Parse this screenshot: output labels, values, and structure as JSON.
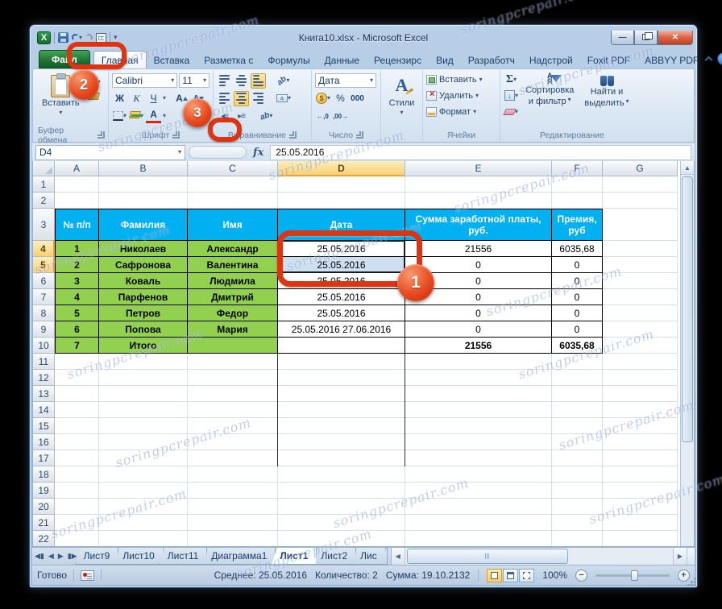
{
  "window": {
    "title": "Книга10.xlsx - Microsoft Excel",
    "logo_letter": "X"
  },
  "ribbon": {
    "file_tab": "Файл",
    "active_tab": "Главная",
    "tabs": [
      "Главная",
      "Вставка",
      "Разметка с",
      "Формулы",
      "Данные",
      "Рецензирс",
      "Вид",
      "Разработч",
      "Надстрой",
      "Foxit PDF",
      "ABBYY PDF"
    ],
    "clipboard": {
      "paste": "Вставить",
      "label": "Буфер обмена"
    },
    "font": {
      "name": "Calibri",
      "size": "11",
      "bold": "Ж",
      "italic": "К",
      "underline": "Ч",
      "size_letter": "А",
      "color_letter": "А",
      "label": "Шрифт"
    },
    "alignment": {
      "orient": "ab",
      "merge": "a",
      "label": "Выравнивание"
    },
    "number": {
      "format": "Дата",
      "percent": "%",
      "thousands": "000",
      "inc_dec": "←,0",
      "dec_dec": ",00→",
      "coin": "$",
      "label": "Число"
    },
    "styles": {
      "letter": "А",
      "label": "Стили"
    },
    "cells": {
      "insert": "Вставить",
      "delete": "Удалить",
      "format": "Формат",
      "label": "Ячейки"
    },
    "editing": {
      "sigma": "Σ",
      "sort_a": "А",
      "sort_z": "Я",
      "sort1": "Сортировка",
      "sort2": "и фильтр",
      "find1": "Найти и",
      "find2": "выделить",
      "label": "Редактирование"
    }
  },
  "formula_bar": {
    "name_box": "D4",
    "fx": "fx",
    "formula": "25.05.2016"
  },
  "sheet": {
    "col_headers": [
      "A",
      "B",
      "C",
      "D",
      "E",
      "F",
      "G"
    ],
    "selected_col": "D",
    "selected_rows": [
      4,
      5
    ],
    "table_headers": [
      "№ п/п",
      "Фамилия",
      "Имя",
      "Дата",
      "Сумма заработной платы, руб.",
      "Премия, руб"
    ],
    "data_rows": [
      {
        "row": 4,
        "cells": [
          "1",
          "Николаев",
          "Александр",
          "25.05.2016",
          "21556",
          "6035,68"
        ]
      },
      {
        "row": 5,
        "cells": [
          "2",
          "Сафронова",
          "Валентина",
          "25.05.2016",
          "0",
          "0"
        ]
      },
      {
        "row": 6,
        "cells": [
          "3",
          "Коваль",
          "Людмила",
          "25.05.2016",
          "0",
          "0"
        ]
      },
      {
        "row": 7,
        "cells": [
          "4",
          "Парфенов",
          "Дмитрий",
          "25.05.2016",
          "0",
          "0"
        ]
      },
      {
        "row": 8,
        "cells": [
          "5",
          "Петров",
          "Федор",
          "25.05.2016",
          "0",
          "0"
        ]
      },
      {
        "row": 9,
        "cells": [
          "6",
          "Попова",
          "Мария",
          "25.05.2016 27.06.2016",
          "0",
          "0"
        ]
      },
      {
        "row": 10,
        "cells": [
          "7",
          "Итого",
          "",
          "",
          "21556",
          "6035,68"
        ],
        "bold": true
      }
    ]
  },
  "sheet_tabs": {
    "tabs": [
      "Лист9",
      "Лист10",
      "Лист11",
      "Диаграмма1",
      "Лист1",
      "Лист2",
      "Лис"
    ],
    "active": "Лист1"
  },
  "status_bar": {
    "ready": "Готово",
    "average_label": "Среднее:",
    "average_value": "25.05.2016",
    "count_label": "Количество:",
    "count_value": "2",
    "sum_label": "Сумма:",
    "sum_value": "19.10.2132",
    "zoom": "100%"
  },
  "callouts": {
    "step1": "1",
    "step2": "2",
    "step3": "3"
  },
  "watermark": "soringpcrepair.com",
  "colors": {
    "table_header": "#00b0f0",
    "row_fill": "#92d050",
    "annotation": "#dd3412",
    "selection": "#cfdff1"
  }
}
